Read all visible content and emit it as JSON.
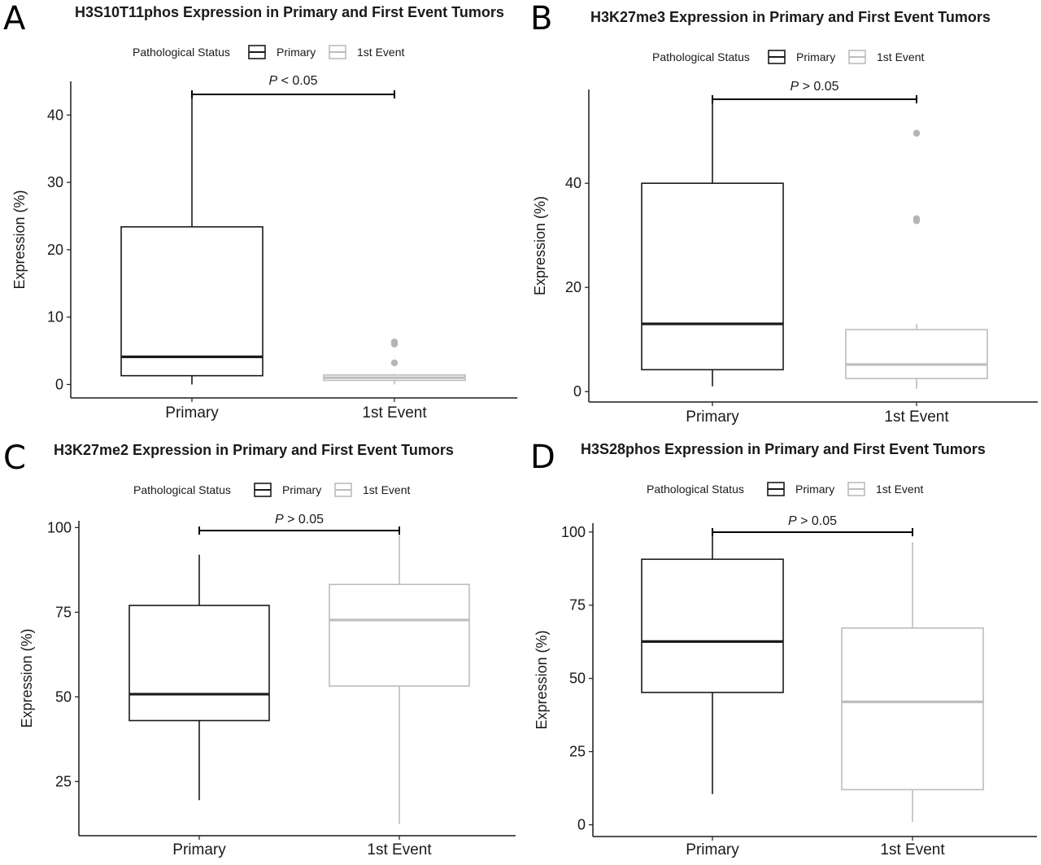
{
  "chart_data": [
    {
      "panel": "A",
      "type": "box",
      "title": "H3S10T11phos Expression in Primary and First Event Tumors",
      "ylabel": "Expression (%)",
      "xlabel": "",
      "ylim": [
        -2,
        45
      ],
      "yticks": [
        0,
        10,
        20,
        30,
        40
      ],
      "categories": [
        "Primary",
        "1st Event"
      ],
      "legend": {
        "title": "Pathological Status",
        "entries": [
          "Primary",
          "1st Event"
        ],
        "position": "top"
      },
      "significance": {
        "p": "P",
        "op": " < 0.05",
        "from": "Primary",
        "to": "1st Event"
      },
      "series": [
        {
          "name": "Primary",
          "color": "#1a1a1a",
          "min": 0,
          "q1": 1.3,
          "median": 4.1,
          "q3": 23.4,
          "max": 42.7,
          "outliers": []
        },
        {
          "name": "1st Event",
          "color": "#bdbdbd",
          "min": 0,
          "q1": 0.6,
          "median": 1,
          "q3": 1.4,
          "max": 1.6,
          "outliers": [
            3.2,
            6.0,
            6.3
          ]
        }
      ]
    },
    {
      "panel": "B",
      "type": "box",
      "title": "H3K27me3 Expression in Primary and First Event Tumors",
      "ylabel": "Expression (%)",
      "xlabel": "",
      "ylim": [
        -2,
        58
      ],
      "yticks": [
        0,
        20,
        40
      ],
      "categories": [
        "Primary",
        "1st Event"
      ],
      "legend": {
        "title": "Pathological Status",
        "entries": [
          "Primary",
          "1st Event"
        ],
        "position": "top"
      },
      "significance": {
        "p": "P",
        "op": " > 0.05",
        "from": "Primary",
        "to": "1st Event"
      },
      "series": [
        {
          "name": "Primary",
          "color": "#1a1a1a",
          "min": 1,
          "q1": 4.2,
          "median": 13,
          "q3": 40,
          "max": 55.8,
          "outliers": []
        },
        {
          "name": "1st Event",
          "color": "#bdbdbd",
          "min": 0.5,
          "q1": 2.5,
          "median": 5.2,
          "q3": 11.9,
          "max": 13,
          "outliers": [
            32.8,
            33.2,
            49.6
          ]
        }
      ]
    },
    {
      "panel": "C",
      "type": "box",
      "title": "H3K27me2 Expression in Primary and First Event Tumors",
      "ylabel": "Expression (%)",
      "xlabel": "",
      "ylim": [
        9,
        102
      ],
      "yticks": [
        25,
        50,
        75,
        100
      ],
      "categories": [
        "Primary",
        "1st Event"
      ],
      "legend": {
        "title": "Pathological Status",
        "entries": [
          "Primary",
          "1st Event"
        ],
        "position": "top"
      },
      "significance": {
        "p": "P",
        "op": " > 0.05",
        "from": "Primary",
        "to": "1st Event"
      },
      "series": [
        {
          "name": "Primary",
          "color": "#1a1a1a",
          "min": 19.5,
          "q1": 43,
          "median": 50.8,
          "q3": 77,
          "max": 92,
          "outliers": []
        },
        {
          "name": "1st Event",
          "color": "#bdbdbd",
          "min": 12.5,
          "q1": 53.2,
          "median": 72.7,
          "q3": 83.2,
          "max": 98,
          "outliers": []
        }
      ]
    },
    {
      "panel": "D",
      "type": "box",
      "title": "H3S28phos Expression in Primary and First Event Tumors",
      "ylabel": "Expression (%)",
      "xlabel": "",
      "ylim": [
        -4,
        103
      ],
      "yticks": [
        0,
        25,
        50,
        75,
        100
      ],
      "categories": [
        "Primary",
        "1st Event"
      ],
      "legend": {
        "title": "Pathological Status",
        "entries": [
          "Primary",
          "1st Event"
        ],
        "position": "top"
      },
      "significance": {
        "p": "P",
        "op": " > 0.05",
        "from": "Primary",
        "to": "1st Event"
      },
      "series": [
        {
          "name": "Primary",
          "color": "#1a1a1a",
          "min": 10.5,
          "q1": 45.2,
          "median": 62.6,
          "q3": 90.7,
          "max": 99,
          "outliers": []
        },
        {
          "name": "1st Event",
          "color": "#bdbdbd",
          "min": 1,
          "q1": 12,
          "median": 42,
          "q3": 67.2,
          "max": 96.5,
          "outliers": []
        }
      ]
    }
  ]
}
